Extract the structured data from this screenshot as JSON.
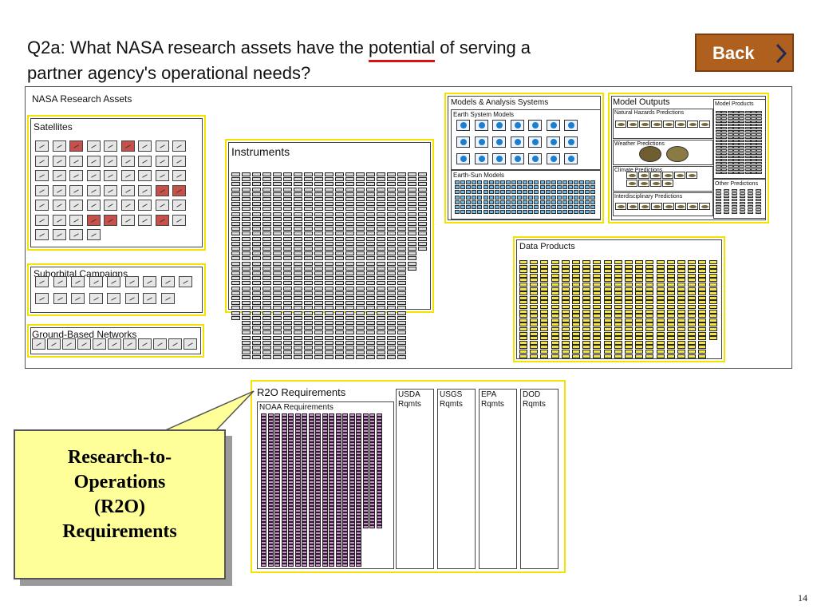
{
  "title": {
    "line1_before": "Q2a: What NASA research assets have the ",
    "line1_highlight": "potential",
    "line1_after": " of serving a",
    "line2": "partner agency's operational needs?"
  },
  "back_button": {
    "label": "Back"
  },
  "assets": {
    "heading": "NASA Research Assets",
    "satellites": "Satellites",
    "suborbital": "Suborbital Campaigns",
    "ground": "Ground-Based Networks",
    "instruments": "Instruments",
    "data_products": "Data Products",
    "models": {
      "heading": "Models & Analysis Systems",
      "earth_system": "Earth System Models",
      "earth_sun": "Earth-Sun Models"
    },
    "outputs": {
      "heading": "Model Outputs",
      "natural_hazards": "Natural Hazards Predictions",
      "weather": "Weather Predictions",
      "climate": "Climate Predictions",
      "interdisciplinary": "Interdisciplinary Predictions",
      "model_products": "Model Products",
      "other_predictions": "Other Predictions"
    }
  },
  "r2o": {
    "heading": "R2O Requirements",
    "noaa": "NOAA Requirements",
    "columns": [
      {
        "line1": "USDA",
        "line2": "Rqmts"
      },
      {
        "line1": "USGS",
        "line2": "Rqmts"
      },
      {
        "line1": "EPA",
        "line2": "Rqmts"
      },
      {
        "line1": "DOD",
        "line2": "Rqmts"
      }
    ]
  },
  "callout": {
    "lines": [
      "Research-to-",
      "Operations",
      "(R2O)",
      "Requirements"
    ]
  },
  "page_number": "14",
  "colors": {
    "highlight_yellow": "#f2e400",
    "back_brown": "#b0601e",
    "underline_red": "#e01010",
    "satellite_red": "#c8504a",
    "data_yellow": "#f2e34a",
    "noaa_pink": "#d58ad8"
  }
}
